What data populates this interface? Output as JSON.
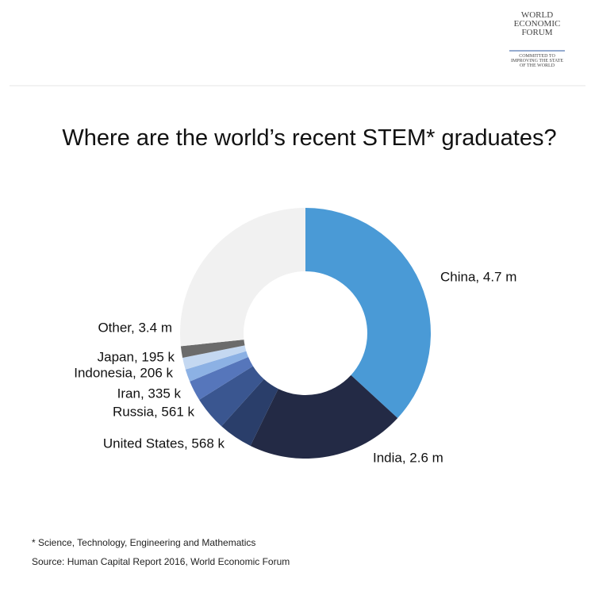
{
  "logo": {
    "name": [
      "WORLD",
      "ECONOMIC",
      "FORUM"
    ],
    "tagline": [
      "COMMITTED TO",
      "IMPROVING THE STATE",
      "OF THE WORLD"
    ]
  },
  "chart_data": {
    "type": "donut",
    "title": "Where are the world’s recent STEM* graduates?",
    "values": [
      4700000,
      2600000,
      568000,
      561000,
      335000,
      206000,
      195000,
      190000,
      3400000
    ],
    "value_labels": [
      "China, 4.7 m",
      "India, 2.6 m",
      "United States, 568 k",
      "Russia, 561 k",
      "Iran, 335 k",
      "Indonesia, 206 k",
      "Japan, 195 k",
      null,
      "Other, 3.4 m"
    ],
    "colors": [
      "#4a9ad6",
      "#232a45",
      "#2a3e6a",
      "#3a5690",
      "#5676bb",
      "#8cb1e4",
      "#c4d8f1",
      "#6b6b6b",
      "#f1f1f1"
    ]
  },
  "footnote": "* Science, Technology, Engineering and Mathematics",
  "source": "Source: Human Capital Report 2016, World Economic Forum"
}
